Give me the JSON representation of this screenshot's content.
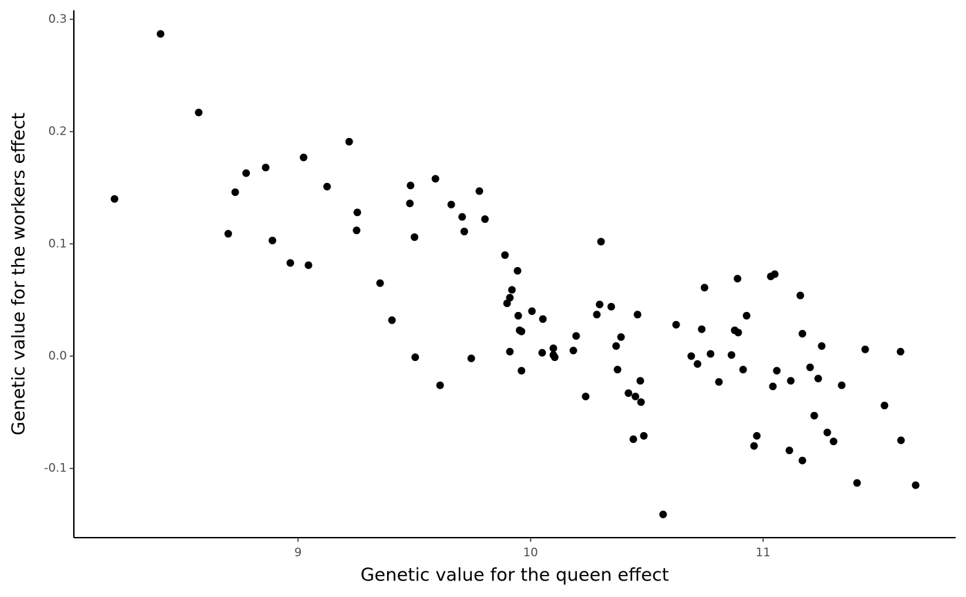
{
  "chart_data": {
    "type": "scatter",
    "x_label": "Genetic value for the queen effect",
    "y_label": "Genetic value for the workers effect",
    "color": "#000000",
    "xlim": [
      8.036,
      11.828
    ],
    "ylim": [
      -0.1617,
      0.308
    ],
    "xticks": [
      9,
      10,
      11
    ],
    "yticks": [
      -0.1,
      {
        "value": 0,
        "label": "0.0"
      },
      0.1,
      0.2,
      0.3
    ],
    "grid": false,
    "x": [
      8.211,
      8.409,
      8.573,
      8.7,
      8.73,
      8.777,
      8.861,
      8.89,
      8.967,
      9.024,
      9.045,
      9.125,
      9.22,
      9.255,
      9.252,
      9.353,
      9.404,
      9.484,
      9.481,
      9.501,
      9.504,
      9.591,
      9.611,
      9.659,
      9.706,
      9.715,
      9.745,
      9.78,
      9.804,
      9.89,
      9.899,
      9.911,
      9.92,
      9.911,
      9.944,
      9.947,
      9.953,
      9.961,
      9.961,
      10.006,
      10.053,
      10.05,
      10.098,
      10.098,
      10.104,
      10.184,
      10.196,
      10.237,
      10.285,
      10.297,
      10.303,
      10.347,
      10.368,
      10.374,
      10.389,
      10.421,
      10.442,
      10.451,
      10.46,
      10.472,
      10.475,
      10.487,
      10.57,
      10.626,
      10.691,
      10.718,
      10.736,
      10.748,
      10.774,
      10.81,
      10.864,
      10.878,
      10.89,
      10.893,
      10.914,
      10.929,
      10.961,
      10.973,
      11.033,
      11.05,
      11.042,
      11.059,
      11.113,
      11.119,
      11.16,
      11.169,
      11.169,
      11.202,
      11.22,
      11.237,
      11.252,
      11.276,
      11.303,
      11.338,
      11.404,
      11.439,
      11.522,
      11.591,
      11.593,
      11.656
    ],
    "values": [
      0.14,
      0.287,
      0.217,
      0.109,
      0.146,
      0.163,
      0.168,
      0.103,
      0.083,
      0.177,
      0.081,
      0.151,
      0.191,
      0.128,
      0.112,
      0.065,
      0.032,
      0.152,
      0.136,
      0.106,
      -0.001,
      0.158,
      -0.026,
      0.135,
      0.124,
      0.111,
      -0.002,
      0.147,
      0.122,
      0.09,
      0.047,
      0.052,
      0.059,
      0.004,
      0.076,
      0.036,
      0.023,
      0.022,
      -0.013,
      0.04,
      0.033,
      0.003,
      0.007,
      0.001,
      -0.001,
      0.005,
      0.018,
      -0.036,
      0.037,
      0.046,
      0.102,
      0.044,
      0.009,
      -0.012,
      0.017,
      -0.033,
      -0.074,
      -0.036,
      0.037,
      -0.022,
      -0.041,
      -0.071,
      -0.141,
      0.028,
      0.0,
      -0.007,
      0.024,
      0.061,
      0.002,
      -0.023,
      0.001,
      0.023,
      0.069,
      0.021,
      -0.012,
      0.036,
      -0.08,
      -0.071,
      0.071,
      0.073,
      -0.027,
      -0.013,
      -0.084,
      -0.022,
      0.054,
      0.02,
      -0.093,
      -0.01,
      -0.053,
      -0.02,
      0.009,
      -0.068,
      -0.076,
      -0.026,
      -0.113,
      0.006,
      -0.044,
      0.004,
      -0.075,
      -0.115
    ]
  }
}
